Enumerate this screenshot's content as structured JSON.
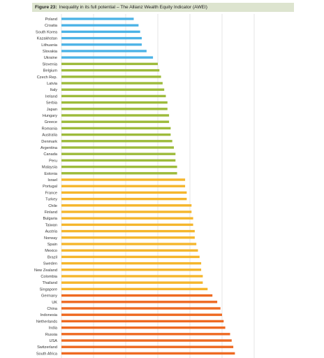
{
  "figure": {
    "label": "Figure 23:",
    "title": "Inequality in its full potential  – The Allianz Wealth Equity Indicator (AWEI)"
  },
  "colors": {
    "blue": "#4cb3e6",
    "green": "#9dbb3b",
    "yellow": "#f5b62c",
    "orange": "#ee6a22",
    "grid": "#d9d9d9",
    "title_bg": "#dde4cf"
  },
  "chart_data": {
    "type": "bar",
    "orientation": "horizontal",
    "grid": true,
    "categories": [
      "Poland",
      "Croatia",
      "South Korea",
      "Kazakhstan",
      "Lithuania",
      "Slovakia",
      "Ukraine",
      "Slovenia",
      "Belgium",
      "Czech Rep.",
      "Latvia",
      "Italy",
      "Ireland",
      "Serbia",
      "Japan",
      "Hungary",
      "Greece",
      "Romania",
      "Australia",
      "Denmark",
      "Argentina",
      "Canada",
      "Peru",
      "Malaysia",
      "Estonia",
      "Israel",
      "Portugal",
      "France",
      "Turkey",
      "Chile",
      "Finland",
      "Bulgaria",
      "Taiwan",
      "Austria",
      "Norway",
      "Spain",
      "Mexico",
      "Brazil",
      "Sweden",
      "New Zealand",
      "Colombia",
      "Thailand",
      "Singapore",
      "Germany",
      "UK",
      "China",
      "Indonesia",
      "Netherlands",
      "India",
      "Russia",
      "USA",
      "Switzerland",
      "South Africa"
    ],
    "values": [
      0.45,
      0.48,
      0.49,
      0.5,
      0.5,
      0.53,
      0.57,
      0.6,
      0.61,
      0.62,
      0.63,
      0.64,
      0.65,
      0.66,
      0.66,
      0.67,
      0.67,
      0.68,
      0.68,
      0.69,
      0.7,
      0.71,
      0.71,
      0.72,
      0.72,
      0.77,
      0.77,
      0.78,
      0.78,
      0.81,
      0.81,
      0.82,
      0.82,
      0.83,
      0.83,
      0.84,
      0.85,
      0.86,
      0.87,
      0.87,
      0.88,
      0.88,
      0.91,
      0.94,
      0.97,
      0.99,
      1.0,
      1.01,
      1.02,
      1.05,
      1.06,
      1.07,
      1.08
    ],
    "color_groups": [
      "blue",
      "blue",
      "blue",
      "blue",
      "blue",
      "blue",
      "blue",
      "green",
      "green",
      "green",
      "green",
      "green",
      "green",
      "green",
      "green",
      "green",
      "green",
      "green",
      "green",
      "green",
      "green",
      "green",
      "green",
      "green",
      "green",
      "yellow",
      "yellow",
      "yellow",
      "yellow",
      "yellow",
      "yellow",
      "yellow",
      "yellow",
      "yellow",
      "yellow",
      "yellow",
      "yellow",
      "yellow",
      "yellow",
      "yellow",
      "yellow",
      "yellow",
      "yellow",
      "orange",
      "orange",
      "orange",
      "orange",
      "orange",
      "orange",
      "orange",
      "orange",
      "orange",
      "orange"
    ],
    "xlim": [
      0,
      1.3
    ],
    "gridlines": [
      0,
      0.2,
      0.4,
      0.6,
      0.8,
      1.0,
      1.2
    ]
  }
}
